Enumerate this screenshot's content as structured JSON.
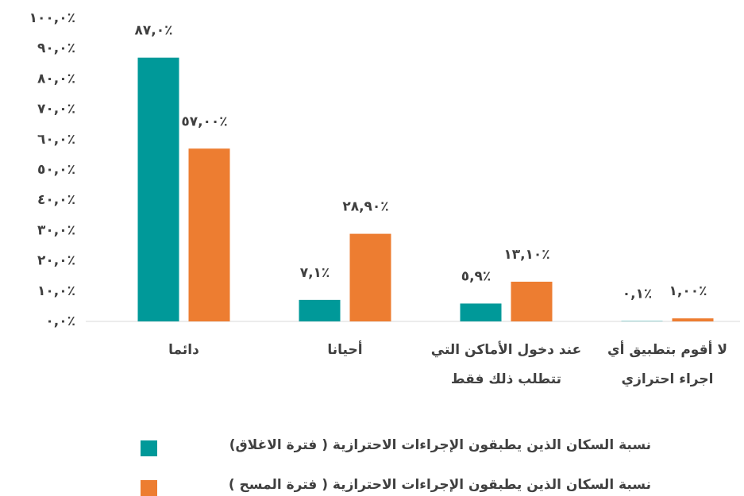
{
  "chart_data": {
    "type": "bar",
    "categories": [
      "دائما",
      "أحيانا",
      "عند دخول الأماكن التي تتطلب ذلك فقط",
      "لا أقوم بتطبيق أي اجراء احترازي"
    ],
    "series": [
      {
        "name": "نسبة السكان الذين يطبقون الإجراءات الاحترازية ( فترة الاغلاق)",
        "color": "#009999",
        "values": [
          87,
          7.1,
          5.9,
          0.1
        ],
        "value_labels": [
          "٨٧,٠٪",
          "٧,١٪",
          "٥,٩٪",
          "٠,١٪"
        ]
      },
      {
        "name": "نسبة السكان الذين يطبقون الإجراءات الاحترازية ( فترة المسح )",
        "color": "#ed7d31",
        "values": [
          57,
          28.9,
          13.1,
          1
        ],
        "value_labels": [
          "٥٧,٠٠٪",
          "٢٨,٩٠٪",
          "١٣,١٠٪",
          "١,٠٠٪"
        ]
      }
    ],
    "ylim": [
      0,
      100
    ],
    "yticks": [
      {
        "value": 0,
        "label": "٠,٠٪"
      },
      {
        "value": 10,
        "label": "١٠,٠٪"
      },
      {
        "value": 20,
        "label": "٢٠,٠٪"
      },
      {
        "value": 30,
        "label": "٣٠,٠٪"
      },
      {
        "value": 40,
        "label": "٤٠,٠٪"
      },
      {
        "value": 50,
        "label": "٥٠,٠٪"
      },
      {
        "value": 60,
        "label": "٦٠,٠٪"
      },
      {
        "value": 70,
        "label": "٧٠,٠٪"
      },
      {
        "value": 80,
        "label": "٨٠,٠٪"
      },
      {
        "value": 90,
        "label": "٩٠,٠٪"
      },
      {
        "value": 100,
        "label": "١٠٠,٠٪"
      }
    ],
    "grid": false
  }
}
